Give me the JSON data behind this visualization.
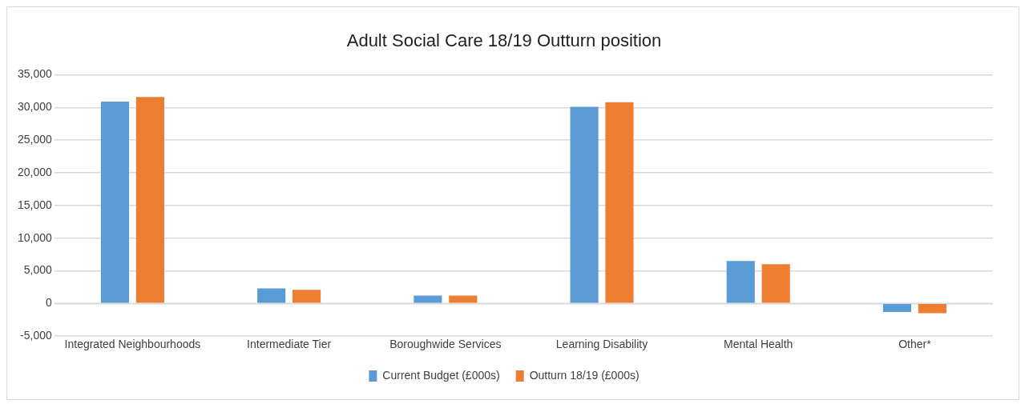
{
  "chart_data": {
    "type": "bar",
    "title": "Adult Social Care 18/19 Outturn position",
    "categories": [
      "Integrated Neighbourhoods",
      "Intermediate Tier",
      "Boroughwide Services",
      "Learning Disability",
      "Mental Health",
      "Other*"
    ],
    "series": [
      {
        "name": "Current Budget (£000s)",
        "color": "#5b9bd5",
        "values": [
          30900,
          2300,
          1200,
          30100,
          6500,
          -1300
        ]
      },
      {
        "name": "Outturn 18/19 (£000s)",
        "color": "#ed7d31",
        "values": [
          31600,
          2100,
          1200,
          30800,
          6000,
          -1500
        ]
      }
    ],
    "ylim": [
      -5000,
      35000
    ],
    "yticks": [
      {
        "value": -5000,
        "label": "-5,000"
      },
      0,
      {
        "value": 5000,
        "label": "5,000"
      },
      {
        "value": 10000,
        "label": "10,000"
      },
      {
        "value": 15000,
        "label": "15,000"
      },
      {
        "value": 20000,
        "label": "20,000"
      },
      {
        "value": 25000,
        "label": "25,000"
      },
      {
        "value": 30000,
        "label": "30,000"
      },
      {
        "value": 35000,
        "label": "35,000"
      }
    ],
    "grid": "y",
    "legend": "bottom"
  }
}
